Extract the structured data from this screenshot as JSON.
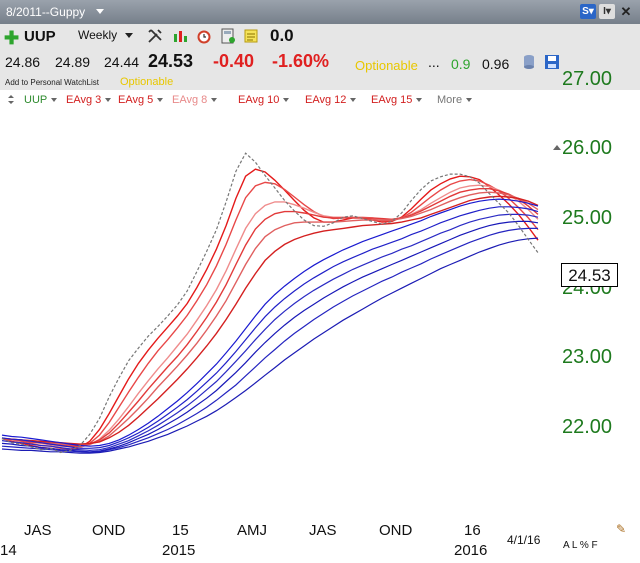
{
  "window": {
    "title": "8/2011--Guppy"
  },
  "header": {
    "symbol": "UUP",
    "period": "Weekly",
    "zero_value": "0.0",
    "open": "24.86",
    "high": "24.89",
    "low": "24.44",
    "last": "24.53",
    "change": "-0.40",
    "change_pct": "-1.60%",
    "optionable": "Optionable",
    "ellipsis": "...",
    "val_green": "0.9",
    "val_black": "0.96",
    "watchlist": "Add to Personal WatchList",
    "optionable2": "Optionable"
  },
  "studies": [
    {
      "label": "UUP",
      "color": "#2e8b2e"
    },
    {
      "label": "EAvg 3",
      "color": "#d21f1f"
    },
    {
      "label": "EAvg 5",
      "color": "#d21f1f"
    },
    {
      "label": "EAvg 8",
      "color": "#e88a8a"
    },
    {
      "label": "EAvg 10",
      "color": "#d21f1f"
    },
    {
      "label": "EAvg 12",
      "color": "#d21f1f"
    },
    {
      "label": "EAvg 15",
      "color": "#d21f1f"
    },
    {
      "label": "More",
      "color": "#777777"
    }
  ],
  "chart_data": {
    "type": "line",
    "ylim": [
      21.3,
      27.2
    ],
    "yticks": [
      "27.00",
      "26.00",
      "25.00",
      "24.00",
      "23.00",
      "22.00"
    ],
    "last_value_label": "24.53",
    "date_label": "4/1/16",
    "bottom_icons": "A L % F",
    "x_ticks": [
      {
        "label": "JAS",
        "sub": "14"
      },
      {
        "label": "OND",
        "sub": ""
      },
      {
        "label": "15",
        "sub": "2015"
      },
      {
        "label": "AMJ",
        "sub": ""
      },
      {
        "label": "JAS",
        "sub": ""
      },
      {
        "label": "OND",
        "sub": ""
      },
      {
        "label": "16",
        "sub": "2016"
      }
    ],
    "price": [
      21.86,
      21.8,
      21.78,
      21.74,
      21.7,
      21.72,
      21.66,
      21.69,
      21.76,
      21.92,
      22.15,
      22.46,
      22.73,
      22.98,
      23.16,
      23.33,
      23.47,
      23.62,
      23.78,
      23.98,
      24.26,
      24.55,
      24.86,
      25.26,
      25.7,
      25.96,
      25.83,
      25.64,
      25.46,
      25.28,
      25.13,
      25.0,
      24.92,
      24.91,
      24.96,
      25.04,
      25.06,
      25.02,
      24.98,
      24.94,
      24.98,
      25.1,
      25.28,
      25.44,
      25.56,
      25.62,
      25.66,
      25.66,
      25.62,
      25.53,
      25.38,
      25.24,
      25.1,
      24.92,
      24.72,
      24.53
    ],
    "series": [
      {
        "group": "short",
        "values": [
          21.86,
          21.82,
          21.79,
          21.76,
          21.73,
          21.72,
          21.69,
          21.69,
          21.73,
          21.82,
          21.99,
          22.22,
          22.47,
          22.72,
          22.94,
          23.13,
          23.3,
          23.46,
          23.62,
          23.8,
          24.03,
          24.29,
          24.58,
          24.92,
          25.31,
          25.63,
          25.73,
          25.69,
          25.57,
          25.43,
          25.28,
          25.14,
          25.03,
          24.97,
          24.97,
          25.0,
          25.03,
          25.03,
          25.0,
          24.97,
          24.98,
          25.04,
          25.16,
          25.3,
          25.43,
          25.52,
          25.59,
          25.63,
          25.62,
          25.58,
          25.48,
          25.36,
          25.23,
          25.08,
          24.9,
          24.71
        ]
      },
      {
        "group": "short",
        "values": [
          21.86,
          21.84,
          21.82,
          21.79,
          21.76,
          21.75,
          21.72,
          21.71,
          21.73,
          21.79,
          21.91,
          22.09,
          22.31,
          22.53,
          22.74,
          22.94,
          23.12,
          23.28,
          23.45,
          23.63,
          23.84,
          24.07,
          24.34,
          24.65,
          25.0,
          25.32,
          25.49,
          25.54,
          25.52,
          25.44,
          25.33,
          25.22,
          25.12,
          25.05,
          25.02,
          25.03,
          25.04,
          25.03,
          25.02,
          24.99,
          24.99,
          25.03,
          25.11,
          25.22,
          25.33,
          25.43,
          25.51,
          25.56,
          25.58,
          25.56,
          25.5,
          25.42,
          25.31,
          25.18,
          25.03,
          24.86
        ]
      },
      {
        "group": "short",
        "values": [
          21.86,
          21.84,
          21.83,
          21.81,
          21.79,
          21.77,
          21.75,
          21.74,
          21.74,
          21.77,
          21.85,
          21.98,
          22.14,
          22.32,
          22.51,
          22.69,
          22.86,
          23.02,
          23.19,
          23.36,
          23.56,
          23.77,
          24.0,
          24.27,
          24.58,
          24.88,
          25.09,
          25.21,
          25.26,
          25.26,
          25.22,
          25.17,
          25.11,
          25.06,
          25.04,
          25.04,
          25.04,
          25.04,
          25.03,
          25.01,
          25.01,
          25.03,
          25.08,
          25.15,
          25.24,
          25.32,
          25.4,
          25.46,
          25.49,
          25.5,
          25.48,
          25.43,
          25.36,
          25.27,
          25.15,
          25.01
        ]
      },
      {
        "group": "short",
        "values": [
          21.86,
          21.85,
          21.83,
          21.81,
          21.8,
          21.78,
          21.77,
          21.75,
          21.75,
          21.78,
          21.84,
          21.94,
          22.08,
          22.24,
          22.4,
          22.57,
          22.73,
          22.89,
          23.04,
          23.21,
          23.4,
          23.6,
          23.82,
          24.07,
          24.36,
          24.64,
          24.87,
          25.01,
          25.09,
          25.12,
          25.12,
          25.1,
          25.07,
          25.04,
          25.03,
          25.03,
          25.03,
          25.03,
          25.03,
          25.02,
          25.01,
          25.03,
          25.07,
          25.13,
          25.2,
          25.27,
          25.34,
          25.4,
          25.43,
          25.45,
          25.45,
          25.42,
          25.37,
          25.3,
          25.2,
          25.08
        ]
      },
      {
        "group": "short",
        "values": [
          21.86,
          21.85,
          21.84,
          21.82,
          21.81,
          21.79,
          21.78,
          21.77,
          21.77,
          21.78,
          21.82,
          21.9,
          22.02,
          22.15,
          22.29,
          22.44,
          22.6,
          22.75,
          22.9,
          23.06,
          23.23,
          23.42,
          23.62,
          23.84,
          24.1,
          24.36,
          24.59,
          24.76,
          24.86,
          24.92,
          24.96,
          24.97,
          24.97,
          24.97,
          24.97,
          24.98,
          24.99,
          25.0,
          25.0,
          25.0,
          25.0,
          25.02,
          25.05,
          25.1,
          25.15,
          25.21,
          25.27,
          25.32,
          25.36,
          25.39,
          25.4,
          25.39,
          25.36,
          25.31,
          25.24,
          25.15
        ]
      },
      {
        "group": "short",
        "values": [
          21.86,
          21.85,
          21.84,
          21.83,
          21.82,
          21.81,
          21.8,
          21.79,
          21.78,
          21.79,
          21.81,
          21.87,
          21.95,
          22.05,
          22.17,
          22.3,
          22.43,
          22.57,
          22.71,
          22.86,
          23.02,
          23.19,
          23.37,
          23.57,
          23.79,
          24.02,
          24.23,
          24.42,
          24.55,
          24.65,
          24.72,
          24.77,
          24.81,
          24.84,
          24.86,
          24.88,
          24.9,
          24.92,
          24.93,
          24.94,
          24.95,
          24.97,
          25.0,
          25.03,
          25.08,
          25.13,
          25.18,
          25.23,
          25.28,
          25.31,
          25.33,
          25.34,
          25.33,
          25.31,
          25.27,
          25.21
        ]
      },
      {
        "group": "long",
        "values": [
          21.91,
          21.89,
          21.88,
          21.86,
          21.84,
          21.82,
          21.8,
          21.78,
          21.76,
          21.75,
          21.76,
          21.79,
          21.84,
          21.91,
          21.99,
          22.08,
          22.18,
          22.29,
          22.4,
          22.52,
          22.65,
          22.79,
          22.93,
          23.09,
          23.26,
          23.44,
          23.62,
          23.79,
          23.93,
          24.05,
          24.16,
          24.26,
          24.35,
          24.43,
          24.5,
          24.57,
          24.63,
          24.69,
          24.74,
          24.79,
          24.84,
          24.89,
          24.94,
          24.99,
          25.05,
          25.1,
          25.15,
          25.2,
          25.24,
          25.27,
          25.29,
          25.3,
          25.29,
          25.27,
          25.24,
          25.2
        ]
      },
      {
        "group": "long",
        "values": [
          21.87,
          21.85,
          21.84,
          21.82,
          21.8,
          21.78,
          21.76,
          21.74,
          21.72,
          21.72,
          21.73,
          21.76,
          21.81,
          21.87,
          21.94,
          22.02,
          22.11,
          22.21,
          22.31,
          22.42,
          22.54,
          22.67,
          22.8,
          22.95,
          23.11,
          23.28,
          23.45,
          23.61,
          23.75,
          23.87,
          23.98,
          24.08,
          24.17,
          24.25,
          24.33,
          24.4,
          24.46,
          24.52,
          24.58,
          24.63,
          24.68,
          24.73,
          24.79,
          24.84,
          24.9,
          24.96,
          25.01,
          25.06,
          25.1,
          25.14,
          25.17,
          25.19,
          25.19,
          25.18,
          25.16,
          25.12
        ]
      },
      {
        "group": "long",
        "values": [
          21.83,
          21.81,
          21.8,
          21.78,
          21.76,
          21.75,
          21.73,
          21.71,
          21.7,
          21.69,
          21.7,
          21.73,
          21.78,
          21.83,
          21.9,
          21.97,
          22.05,
          22.14,
          22.23,
          22.33,
          22.44,
          22.56,
          22.68,
          22.82,
          22.97,
          23.12,
          23.28,
          23.43,
          23.57,
          23.69,
          23.8,
          23.9,
          23.99,
          24.07,
          24.15,
          24.22,
          24.29,
          24.35,
          24.41,
          24.47,
          24.52,
          24.58,
          24.63,
          24.69,
          24.75,
          24.81,
          24.86,
          24.92,
          24.97,
          25.01,
          25.04,
          25.07,
          25.08,
          25.08,
          25.07,
          25.04
        ]
      },
      {
        "group": "long",
        "values": [
          21.79,
          21.78,
          21.76,
          21.75,
          21.73,
          21.72,
          21.7,
          21.69,
          21.68,
          21.67,
          21.68,
          21.71,
          21.75,
          21.8,
          21.86,
          21.92,
          21.99,
          22.07,
          22.15,
          22.24,
          22.34,
          22.44,
          22.55,
          22.68,
          22.81,
          22.95,
          23.1,
          23.24,
          23.37,
          23.49,
          23.6,
          23.7,
          23.79,
          23.88,
          23.96,
          24.04,
          24.11,
          24.18,
          24.24,
          24.3,
          24.36,
          24.42,
          24.48,
          24.54,
          24.6,
          24.66,
          24.72,
          24.78,
          24.83,
          24.88,
          24.92,
          24.95,
          24.97,
          24.98,
          24.98,
          24.96
        ]
      },
      {
        "group": "long",
        "values": [
          21.75,
          21.74,
          21.73,
          21.72,
          21.71,
          21.7,
          21.69,
          21.68,
          21.67,
          21.66,
          21.67,
          21.7,
          21.73,
          21.77,
          21.82,
          21.87,
          21.93,
          21.99,
          22.06,
          22.14,
          22.22,
          22.31,
          22.41,
          22.52,
          22.63,
          22.76,
          22.89,
          23.02,
          23.14,
          23.26,
          23.37,
          23.47,
          23.57,
          23.66,
          23.75,
          23.83,
          23.91,
          23.98,
          24.05,
          24.12,
          24.18,
          24.25,
          24.31,
          24.37,
          24.44,
          24.5,
          24.56,
          24.62,
          24.68,
          24.73,
          24.78,
          24.82,
          24.85,
          24.87,
          24.88,
          24.88
        ]
      },
      {
        "group": "long",
        "values": [
          21.71,
          21.7,
          21.69,
          21.69,
          21.68,
          21.67,
          21.67,
          21.66,
          21.65,
          21.65,
          21.66,
          21.68,
          21.71,
          21.74,
          21.78,
          21.82,
          21.87,
          21.92,
          21.98,
          22.04,
          22.11,
          22.18,
          22.26,
          22.35,
          22.45,
          22.55,
          22.66,
          22.77,
          22.88,
          22.99,
          23.09,
          23.19,
          23.29,
          23.38,
          23.47,
          23.56,
          23.64,
          23.72,
          23.8,
          23.88,
          23.95,
          24.02,
          24.09,
          24.16,
          24.23,
          24.3,
          24.36,
          24.42,
          24.48,
          24.54,
          24.59,
          24.64,
          24.68,
          24.71,
          24.73,
          24.74
        ]
      }
    ]
  }
}
